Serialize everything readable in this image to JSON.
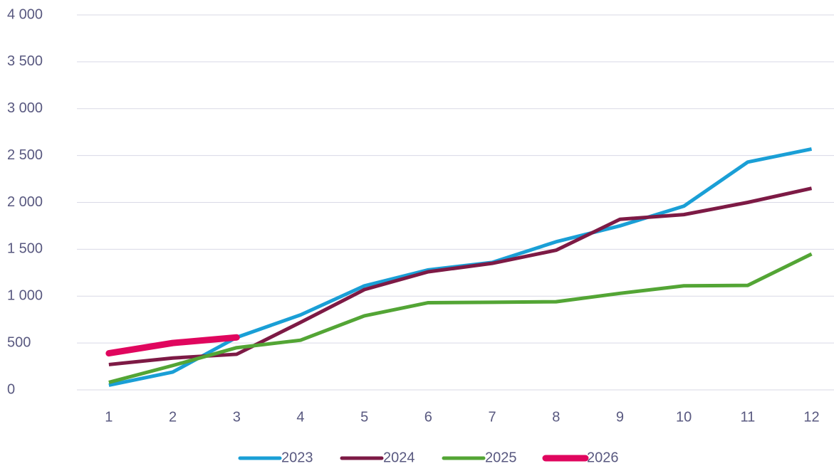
{
  "chart_data": {
    "type": "line",
    "categories": [
      "1",
      "2",
      "3",
      "4",
      "5",
      "6",
      "7",
      "8",
      "9",
      "10",
      "11",
      "12"
    ],
    "series": [
      {
        "name": "2023",
        "color": "#1a9fd6",
        "values": [
          50,
          190,
          560,
          800,
          1110,
          1280,
          1360,
          1580,
          1750,
          1960,
          2430,
          2570
        ]
      },
      {
        "name": "2024",
        "color": "#7d1a45",
        "values": [
          270,
          340,
          380,
          720,
          1070,
          1260,
          1350,
          1490,
          1820,
          1870,
          2000,
          2150
        ]
      },
      {
        "name": "2025",
        "color": "#53a535",
        "values": [
          80,
          260,
          450,
          530,
          790,
          930,
          935,
          940,
          1030,
          1110,
          1115,
          1450
        ]
      },
      {
        "name": "2026",
        "color": "#e0065e",
        "values": [
          390,
          500,
          560,
          null,
          null,
          null,
          null,
          null,
          null,
          null,
          null,
          null
        ]
      }
    ],
    "ylim": [
      0,
      4000
    ],
    "yticks": [
      0,
      500,
      {
        "value": 1000,
        "label": "1 000"
      },
      {
        "value": 1500,
        "label": "1 500"
      },
      {
        "value": 2000,
        "label": "2 000"
      },
      {
        "value": 2500,
        "label": "2 500"
      },
      {
        "value": 3000,
        "label": "3 000"
      },
      {
        "value": 3500,
        "label": "3 500"
      },
      {
        "value": 4000,
        "label": "4 000"
      }
    ],
    "grid": true,
    "legend": "bottom"
  }
}
